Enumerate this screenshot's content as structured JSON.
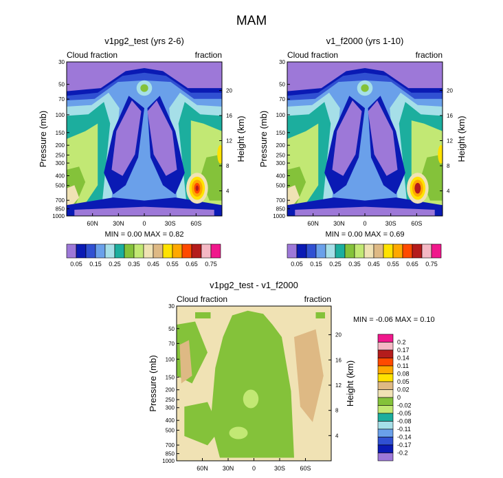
{
  "figure_title": "MAM",
  "chart_data": [
    {
      "type": "heatmap",
      "title": "v1pg2_test (yrs 2-6)",
      "left_label": "Cloud fraction",
      "right_label": "fraction",
      "ylabel": "Pressure (mb)",
      "y2label": "Height (km)",
      "pressure_ticks": [
        "30",
        "50",
        "70",
        "100",
        "150",
        "200",
        "250",
        "300",
        "400",
        "500",
        "700",
        "850",
        "1000"
      ],
      "height_ticks": [
        "20",
        "16",
        "12",
        "8",
        "4"
      ],
      "lat_ticks": [
        "60N",
        "30N",
        "0",
        "30S",
        "60S"
      ],
      "stats": "MIN =   0.00   MAX =   0.82",
      "min": 0.0,
      "max": 0.82,
      "colorbar_labels": [
        "0.05",
        "0.15",
        "0.25",
        "0.35",
        "0.45",
        "0.55",
        "0.65",
        "0.75"
      ]
    },
    {
      "type": "heatmap",
      "title": "v1_f2000 (yrs 1-10)",
      "left_label": "Cloud fraction",
      "right_label": "fraction",
      "ylabel": "Pressure (mb)",
      "y2label": "Height (km)",
      "pressure_ticks": [
        "30",
        "50",
        "70",
        "100",
        "150",
        "200",
        "250",
        "300",
        "400",
        "500",
        "700",
        "850",
        "1000"
      ],
      "height_ticks": [
        "20",
        "16",
        "12",
        "8",
        "4"
      ],
      "lat_ticks": [
        "60N",
        "30N",
        "0",
        "30S",
        "60S"
      ],
      "stats": "MIN =   0.00   MAX =   0.69",
      "min": 0.0,
      "max": 0.69,
      "colorbar_labels": [
        "0.05",
        "0.15",
        "0.25",
        "0.35",
        "0.45",
        "0.55",
        "0.65",
        "0.75"
      ]
    },
    {
      "type": "heatmap",
      "title": "v1pg2_test - v1_f2000",
      "left_label": "Cloud fraction",
      "right_label": "fraction",
      "ylabel": "Pressure (mb)",
      "y2label": "Height (km)",
      "pressure_ticks": [
        "30",
        "50",
        "70",
        "100",
        "150",
        "200",
        "250",
        "300",
        "400",
        "500",
        "700",
        "850",
        "1000"
      ],
      "height_ticks": [
        "20",
        "16",
        "12",
        "8",
        "4"
      ],
      "lat_ticks": [
        "60N",
        "30N",
        "0",
        "30S",
        "60S"
      ],
      "stats": "MIN =  -0.06   MAX =  0.10",
      "min": -0.06,
      "max": 0.1,
      "colorbar_labels": [
        "0.2",
        "0.17",
        "0.14",
        "0.11",
        "0.08",
        "0.05",
        "0.02",
        "0",
        "-0.02",
        "-0.05",
        "-0.08",
        "-0.11",
        "-0.14",
        "-0.17",
        "-0.2"
      ]
    }
  ],
  "colors": {
    "abs_levels": [
      "#9d78d8",
      "#0a1ab4",
      "#3050d2",
      "#6aa0ea",
      "#a6dfe8",
      "#1cae9e",
      "#84c23a",
      "#c2e874",
      "#f0e2b4",
      "#deb984",
      "#ffe200",
      "#ffa800",
      "#ff4a00",
      "#b41c1c",
      "#f4b8c4",
      "#f0188c"
    ],
    "diff_levels": [
      "#f0188c",
      "#f4b8c4",
      "#b41c1c",
      "#ff4a00",
      "#ffa800",
      "#ffe200",
      "#deb984",
      "#f0e2b4",
      "#84c23a",
      "#c2e874",
      "#1cae9e",
      "#a6dfe8",
      "#6aa0ea",
      "#3050d2",
      "#0a1ab4",
      "#9d78d8"
    ]
  }
}
